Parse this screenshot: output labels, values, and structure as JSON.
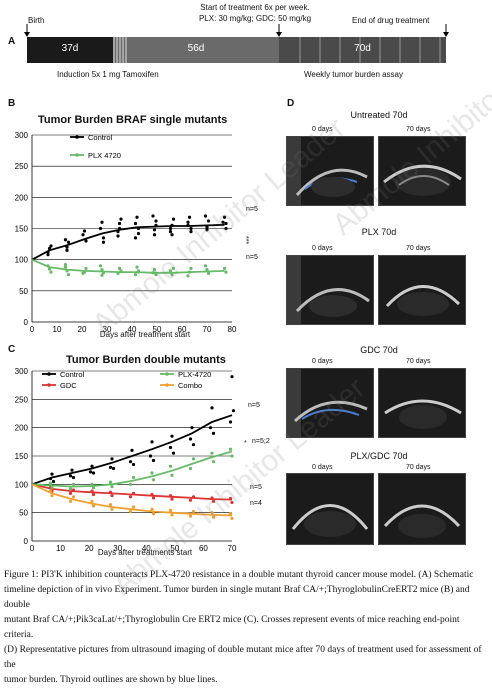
{
  "panel_a": {
    "letter": "A",
    "birth": "Birth",
    "start_treatment": "Start of treatment 6x per week.",
    "doses": "PLX: 30 mg/kg; GDC: 50 mg/kg",
    "end_treatment": "End of drug treatment",
    "seg1": "37d",
    "seg2": "56d",
    "seg3": "70d",
    "induction": "Induction 5x 1 mg Tamoxifen",
    "weekly": "Weekly tumor burden assay"
  },
  "panel_b": {
    "letter": "B",
    "title": "Tumor Burden BRAF single mutants",
    "xlabel": "Days after treatment start",
    "n_control": "n=5",
    "n_plx": "n=5",
    "stars": "***"
  },
  "panel_c": {
    "letter": "C",
    "title": "Tumor Burden double mutants",
    "xlabel": "Days after treatments start",
    "n1": "n=5",
    "n2": "n=5;2",
    "n3": "n=5",
    "n4": "n=4",
    "star": "*"
  },
  "panel_d": {
    "letter": "D",
    "groups": [
      {
        "title": "Untreated 70d",
        "left": "0 days",
        "right": "70 days"
      },
      {
        "title": "PLX 70d",
        "left": "0 days",
        "right": "70 days"
      },
      {
        "title": "GDC 70d",
        "left": "0 days",
        "right": "70 days"
      },
      {
        "title": "PLX/GDC 70d",
        "left": "0 days",
        "right": "70 days"
      }
    ]
  },
  "caption": {
    "line1": "Figure 1: PI3'K inhibition counteracts PLX-4720 resistance in a double mutant thyroid cancer mouse model. (A) Schematic",
    "line2": "timeline depiction of in vivo Experiment. Tumor burden in single mutant Braf CA/+;ThyroglobulinCreERT2 mice (B) and double",
    "line3": "mutant Braf CA/+;Pik3caLat/+;Thyroglobulin Cre ERT2 mice (C). Crosses represent events of mice reaching end-point criteria.",
    "line4": "(D) Representative pictures from ultrasound imaging of double mutant mice after 70 days of treatment used for assessment of the",
    "line5": "tumor burden. Thyroid outlines are shown by blue lines."
  },
  "watermark": "Abmole Inhibitor Leader",
  "chart_data": [
    {
      "type": "scatter",
      "title": "Tumor Burden BRAF single mutants",
      "xlabel": "Days after treatment start",
      "ylabel": "",
      "xlim": [
        0,
        80
      ],
      "ylim": [
        0,
        300
      ],
      "xticks": [
        0,
        10,
        20,
        30,
        40,
        50,
        60,
        70,
        80
      ],
      "yticks": [
        0,
        50,
        100,
        150,
        200,
        250,
        300
      ],
      "series": [
        {
          "name": "Control",
          "color": "#000000",
          "line_x": [
            0,
            7,
            14,
            21,
            28,
            35,
            42,
            49,
            56,
            63,
            70,
            77
          ],
          "line_y": [
            100,
            115,
            123,
            133,
            142,
            148,
            152,
            153,
            154,
            154,
            155,
            156
          ],
          "points_x": [
            7,
            7,
            7,
            7,
            14,
            14,
            14,
            14,
            21,
            21,
            21,
            28,
            28,
            28,
            28,
            35,
            35,
            35,
            35,
            35,
            42,
            42,
            42,
            42,
            42,
            49,
            49,
            49,
            49,
            49,
            56,
            56,
            56,
            56,
            56,
            63,
            63,
            63,
            63,
            63,
            70,
            70,
            70,
            70,
            77,
            77,
            77,
            77
          ],
          "points_y": [
            112,
            118,
            122,
            108,
            120,
            128,
            132,
            115,
            130,
            140,
            146,
            135,
            150,
            160,
            128,
            145,
            158,
            165,
            138,
            150,
            142,
            158,
            168,
            150,
            135,
            148,
            162,
            170,
            140,
            155,
            145,
            155,
            165,
            150,
            140,
            150,
            160,
            168,
            145,
            155,
            152,
            162,
            170,
            148,
            150,
            160,
            168,
            158
          ]
        },
        {
          "name": "PLX 4720",
          "color": "#66bb66",
          "line_x": [
            0,
            7,
            14,
            21,
            28,
            35,
            42,
            49,
            56,
            63,
            70,
            77
          ],
          "line_y": [
            100,
            88,
            84,
            82,
            81,
            80,
            80,
            79,
            79,
            80,
            81,
            82
          ],
          "points_x": [
            7,
            7,
            7,
            14,
            14,
            14,
            14,
            21,
            21,
            21,
            28,
            28,
            28,
            28,
            35,
            35,
            35,
            42,
            42,
            42,
            42,
            49,
            49,
            49,
            56,
            56,
            56,
            56,
            63,
            63,
            63,
            70,
            70,
            70,
            77,
            77
          ],
          "points_y": [
            90,
            85,
            80,
            88,
            82,
            76,
            92,
            80,
            86,
            78,
            84,
            79,
            90,
            75,
            82,
            78,
            86,
            80,
            76,
            88,
            82,
            79,
            84,
            76,
            82,
            76,
            86,
            80,
            80,
            86,
            74,
            84,
            78,
            90,
            86,
            80
          ]
        }
      ]
    },
    {
      "type": "scatter",
      "title": "Tumor Burden double mutants",
      "xlabel": "Days after treatments start",
      "ylabel": "",
      "xlim": [
        0,
        70
      ],
      "ylim": [
        0,
        300
      ],
      "xticks": [
        0,
        10,
        20,
        30,
        40,
        50,
        60,
        70
      ],
      "yticks": [
        0,
        50,
        100,
        150,
        200,
        250,
        300
      ],
      "series": [
        {
          "name": "Control",
          "color": "#000000",
          "line_x": [
            0,
            7,
            14,
            21,
            28,
            35,
            42,
            49,
            56,
            63,
            70
          ],
          "line_y": [
            100,
            112,
            120,
            128,
            138,
            150,
            162,
            175,
            190,
            210,
            222
          ],
          "points_x": [
            7,
            7,
            7,
            14,
            14,
            14,
            21,
            21,
            21,
            28,
            28,
            28,
            35,
            35,
            35,
            42,
            42,
            42,
            49,
            49,
            49,
            56,
            56,
            56,
            63,
            63,
            63,
            70,
            70,
            70
          ],
          "points_y": [
            110,
            118,
            105,
            115,
            125,
            112,
            122,
            132,
            120,
            130,
            145,
            128,
            140,
            160,
            135,
            150,
            175,
            142,
            165,
            185,
            155,
            180,
            200,
            170,
            200,
            235,
            190,
            210,
            290,
            230
          ]
        },
        {
          "name": "GDC",
          "color": "#dd3333",
          "line_x": [
            0,
            7,
            14,
            21,
            28,
            35,
            42,
            49,
            56,
            63,
            70
          ],
          "line_y": [
            100,
            92,
            88,
            86,
            84,
            82,
            80,
            78,
            76,
            74,
            73
          ],
          "points_x": [
            7,
            7,
            14,
            14,
            21,
            21,
            28,
            28,
            35,
            35,
            42,
            42,
            49,
            49,
            56,
            56,
            63,
            63,
            70,
            70
          ],
          "points_y": [
            95,
            88,
            90,
            84,
            88,
            82,
            86,
            80,
            84,
            78,
            82,
            76,
            80,
            74,
            78,
            72,
            76,
            70,
            75,
            68
          ]
        },
        {
          "name": "PLX-4720",
          "color": "#66bb66",
          "line_x": [
            0,
            7,
            14,
            21,
            28,
            35,
            42,
            49,
            56,
            63,
            70
          ],
          "line_y": [
            100,
            98,
            96,
            97,
            100,
            106,
            114,
            124,
            136,
            148,
            158
          ],
          "points_x": [
            7,
            7,
            14,
            14,
            21,
            21,
            28,
            28,
            35,
            35,
            42,
            42,
            49,
            49,
            56,
            56,
            63,
            63,
            70,
            70
          ],
          "points_y": [
            102,
            94,
            100,
            92,
            100,
            94,
            104,
            96,
            112,
            100,
            120,
            108,
            132,
            116,
            145,
            128,
            155,
            140,
            162,
            150
          ]
        },
        {
          "name": "Combo",
          "color": "#f0a030",
          "line_x": [
            0,
            7,
            14,
            21,
            28,
            35,
            42,
            49,
            56,
            63,
            70
          ],
          "line_y": [
            100,
            84,
            74,
            66,
            60,
            56,
            52,
            50,
            48,
            46,
            45
          ],
          "points_x": [
            7,
            7,
            14,
            14,
            21,
            21,
            28,
            28,
            35,
            35,
            42,
            42,
            49,
            49,
            56,
            56,
            63,
            63,
            70,
            70
          ],
          "points_y": [
            88,
            80,
            78,
            70,
            70,
            62,
            64,
            56,
            60,
            52,
            56,
            48,
            54,
            46,
            52,
            44,
            50,
            42,
            48,
            40
          ]
        }
      ]
    }
  ]
}
